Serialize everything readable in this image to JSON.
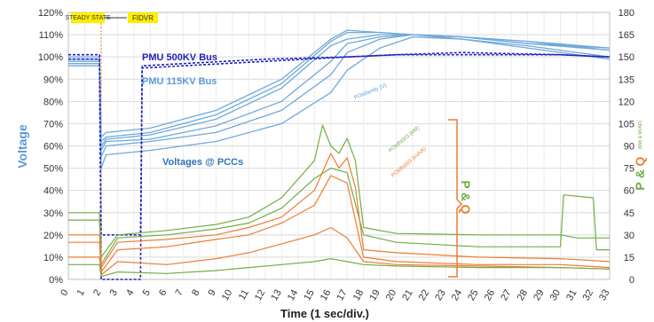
{
  "chart_data": {
    "type": "line",
    "xlabel": "Time (1 sec/div.)",
    "ylabel_left": "Voltage",
    "ylabel_right_p": "P",
    "ylabel_right_amp": "&",
    "ylabel_right_q": "Q",
    "ylabel_right_units": "(MW & MVAR)",
    "x_ticks": [
      "0",
      "1",
      "2",
      "3",
      "4",
      "5",
      "6",
      "7",
      "8",
      "9",
      "10",
      "11",
      "12",
      "13",
      "14",
      "15",
      "16",
      "17",
      "18",
      "19",
      "20",
      "21",
      "22",
      "23",
      "24",
      "25",
      "26",
      "27",
      "28",
      "29",
      "30",
      "31",
      "32",
      "33"
    ],
    "y_left_ticks": [
      "0%",
      "10%",
      "20%",
      "30%",
      "40%",
      "50%",
      "60%",
      "70%",
      "80%",
      "90%",
      "100%",
      "110%",
      "120%"
    ],
    "y_right_ticks": [
      "0",
      "15",
      "30",
      "45",
      "60",
      "75",
      "90",
      "105",
      "120",
      "135",
      "150",
      "165",
      "180"
    ],
    "xlim": [
      0,
      33
    ],
    "ylim_left": [
      0,
      120
    ],
    "ylim_right": [
      0,
      180
    ],
    "grid": true,
    "markers": [
      {
        "label": "STEADY STATE",
        "x": 2,
        "color": "#ffee00"
      },
      {
        "label": "FIDVR",
        "x": 2,
        "color": "#ffee00"
      }
    ],
    "annotations": {
      "pmu500": "PMU 500KV Bus",
      "pmu115": "PMU 115KV Bus",
      "pccs": "Voltages @ PCCs",
      "pointv": "POIsfamily (V)",
      "pointp": "POIdfs003 (kW)",
      "pointq": "POIdfs003 (kVAR)",
      "pq_p": "P",
      "pq_amp": "&",
      "pq_q": "Q"
    },
    "colors": {
      "voltage_axis": "#5b9bd5",
      "pmu": "#2222bb",
      "v_series": "#6fa8dc",
      "p_series": "#70ad47",
      "q_series": "#ed7d31"
    },
    "series": [
      {
        "group": "voltage",
        "x": [
          0,
          1.9,
          2,
          2.3,
          5,
          9,
          13,
          16,
          17,
          19,
          21,
          24,
          28,
          33
        ],
        "y": [
          98,
          98,
          60,
          63,
          65,
          72,
          86,
          105,
          108,
          110,
          110,
          109,
          107,
          103
        ]
      },
      {
        "group": "voltage",
        "x": [
          0,
          1.9,
          2,
          2.3,
          5,
          9,
          13,
          16,
          17,
          19,
          21,
          24,
          28,
          33
        ],
        "y": [
          99,
          99,
          58,
          62,
          63,
          69,
          80,
          98,
          106,
          109,
          110,
          109,
          106,
          104
        ]
      },
      {
        "group": "voltage",
        "x": [
          0,
          1.9,
          2,
          2.3,
          5,
          9,
          13,
          16,
          17,
          19,
          21,
          24,
          28,
          33
        ],
        "y": [
          97,
          97,
          55,
          60,
          62,
          66,
          76,
          92,
          102,
          108,
          110,
          108,
          105,
          100
        ]
      },
      {
        "group": "voltage",
        "x": [
          0,
          1.9,
          2,
          2.3,
          5,
          9,
          13,
          16,
          17,
          19,
          21,
          24,
          28,
          33
        ],
        "y": [
          100,
          100,
          62,
          64,
          66,
          74,
          88,
          107,
          111,
          111,
          110,
          109,
          107,
          104
        ]
      },
      {
        "group": "voltage",
        "x": [
          0,
          1.9,
          2,
          2.3,
          5,
          9,
          13,
          16,
          17,
          19,
          21,
          24,
          28,
          33
        ],
        "y": [
          96,
          96,
          50,
          56,
          58,
          62,
          70,
          84,
          94,
          104,
          109,
          108,
          104,
          99
        ]
      },
      {
        "group": "voltage",
        "x": [
          0,
          1.9,
          2,
          2.3,
          5,
          9,
          13,
          16,
          17,
          19,
          21,
          24,
          28,
          33
        ],
        "y": [
          99,
          99,
          64,
          66,
          68,
          76,
          90,
          108,
          112,
          111,
          110,
          109,
          106,
          103
        ]
      },
      {
        "group": "pmu500",
        "x": [
          0,
          1.9,
          2,
          4.4,
          4.5,
          7,
          12,
          17,
          20,
          24,
          30,
          33
        ],
        "y": [
          99,
          99,
          20,
          20,
          96,
          97,
          99,
          100,
          101,
          102,
          101,
          100
        ]
      },
      {
        "group": "pmu115",
        "x": [
          0,
          1.9,
          2,
          4.4,
          4.5,
          7,
          12,
          17,
          20,
          24,
          30,
          33
        ],
        "y": [
          101,
          101,
          0,
          0,
          95,
          96,
          98,
          100,
          101,
          101,
          101,
          100
        ]
      },
      {
        "group": "p",
        "x": [
          0,
          1.9,
          2,
          3,
          6,
          9,
          11,
          13,
          15,
          15.5,
          16,
          16.5,
          17,
          17.5,
          18,
          20,
          25,
          30,
          31,
          32,
          33
        ],
        "y": [
          45,
          45,
          15,
          30,
          33,
          37,
          42,
          55,
          80,
          104,
          90,
          85,
          95,
          80,
          35,
          31,
          30,
          30,
          28,
          28,
          28
        ]
      },
      {
        "group": "p",
        "x": [
          0,
          1.9,
          2,
          3,
          6,
          9,
          11,
          13,
          15,
          16,
          17,
          18,
          20,
          25,
          30,
          30.2,
          32,
          32.2,
          33
        ],
        "y": [
          40,
          40,
          10,
          28,
          30,
          34,
          38,
          48,
          68,
          75,
          72,
          30,
          25,
          22,
          22,
          57,
          55,
          20,
          20
        ]
      },
      {
        "group": "q",
        "x": [
          0,
          1.9,
          2,
          3,
          6,
          9,
          11,
          13,
          15,
          16,
          16.5,
          17,
          17.5,
          18,
          20,
          25,
          30,
          33
        ],
        "y": [
          30,
          30,
          8,
          25,
          27,
          30,
          35,
          42,
          60,
          85,
          75,
          82,
          62,
          20,
          18,
          15,
          14,
          12
        ]
      },
      {
        "group": "q",
        "x": [
          0,
          1.9,
          2,
          3,
          6,
          9,
          11,
          13,
          15,
          16,
          17,
          18,
          20,
          25,
          30,
          33
        ],
        "y": [
          25,
          25,
          5,
          20,
          22,
          27,
          30,
          38,
          50,
          70,
          65,
          15,
          12,
          10,
          10,
          8
        ]
      },
      {
        "group": "q",
        "x": [
          0,
          1.9,
          2,
          3,
          6,
          9,
          11,
          13,
          15,
          16,
          17,
          18,
          20,
          25,
          30,
          33
        ],
        "y": [
          15,
          15,
          3,
          12,
          10,
          14,
          18,
          24,
          30,
          35,
          28,
          12,
          10,
          9,
          8,
          7
        ]
      },
      {
        "group": "p",
        "x": [
          0,
          1.9,
          2,
          3,
          6,
          9,
          11,
          13,
          15,
          16,
          17,
          18,
          20,
          25,
          30,
          33
        ],
        "y": [
          10,
          10,
          2,
          5,
          4,
          6,
          8,
          10,
          12,
          14,
          12,
          10,
          9,
          8,
          8,
          7
        ]
      }
    ]
  }
}
